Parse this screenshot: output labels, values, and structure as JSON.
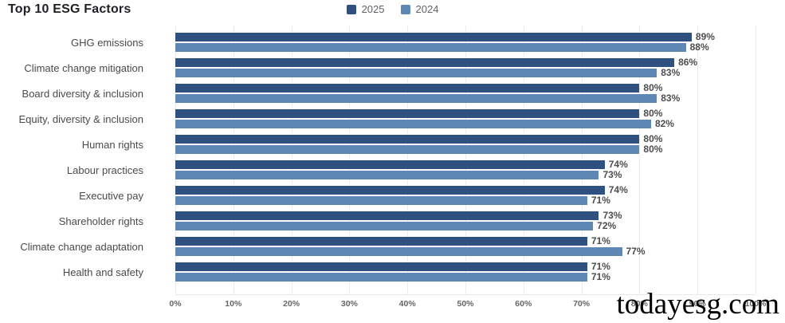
{
  "header": {
    "title": "Top 10 ESG Factors"
  },
  "chart_data": {
    "type": "bar",
    "orientation": "horizontal",
    "title": "Top 10 ESG Factors",
    "categories": [
      "GHG emissions",
      "Climate change mitigation",
      "Board diversity & inclusion",
      "Equity, diversity & inclusion",
      "Human rights",
      "Labour practices",
      "Executive pay",
      "Shareholder rights",
      "Climate change adaptation",
      "Health and safety"
    ],
    "series": [
      {
        "name": "2025",
        "color": "#2F5181",
        "values": [
          89,
          86,
          80,
          80,
          80,
          74,
          74,
          73,
          71,
          71
        ]
      },
      {
        "name": "2024",
        "color": "#5E87B5",
        "values": [
          88,
          83,
          83,
          82,
          80,
          73,
          71,
          72,
          77,
          71
        ]
      }
    ],
    "value_suffix": "%",
    "data_labels": true,
    "xlim": [
      0,
      100
    ],
    "x_ticks": [
      "0%",
      "10%",
      "20%",
      "30%",
      "40%",
      "50%",
      "60%",
      "70%",
      "80%",
      "90%",
      "100%"
    ],
    "grid": "vertical",
    "legend_position": "top-center"
  },
  "watermark": {
    "text": "todayesg.com"
  }
}
